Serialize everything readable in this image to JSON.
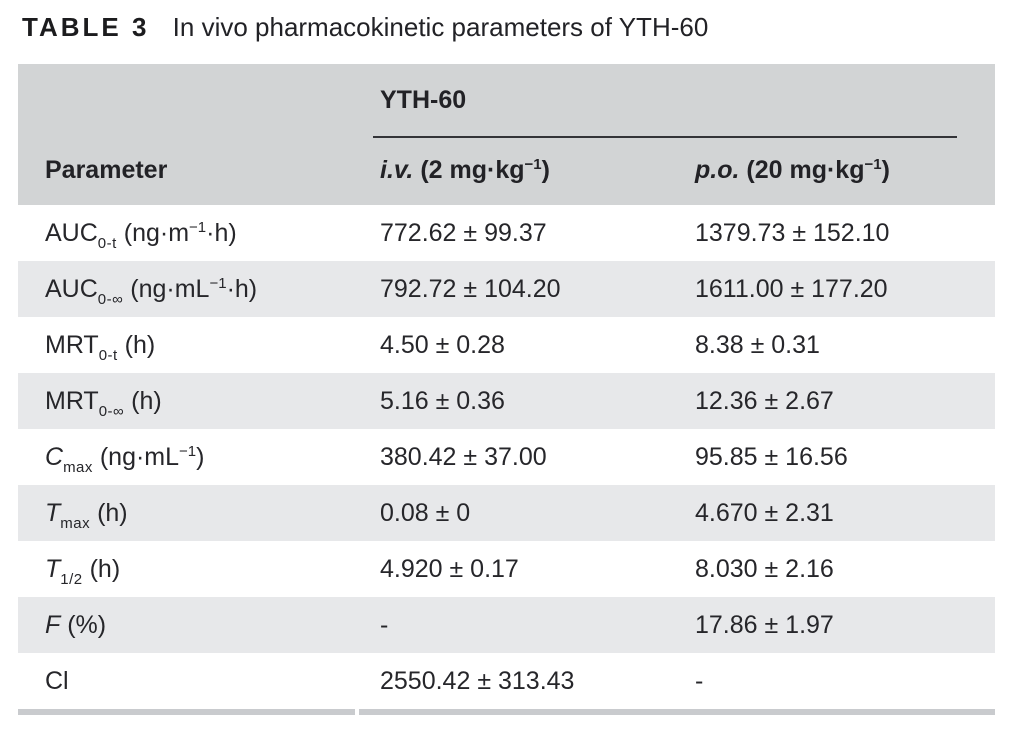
{
  "title": {
    "label": "TABLE 3",
    "text": "In vivo pharmacokinetic parameters of YTH-60"
  },
  "table": {
    "group_header": "YTH-60",
    "header": {
      "parameter": "Parameter",
      "iv": {
        "label": "i.v.",
        "dose_prefix": " (2 mg·kg",
        "exponent": "−1",
        "dose_suffix": ")"
      },
      "po": {
        "label": "p.o.",
        "dose_prefix": " (20 mg·kg",
        "exponent": "−1",
        "dose_suffix": ")"
      }
    },
    "rows": [
      {
        "base": "AUC",
        "base_italic": false,
        "sub": "0-t",
        "unit_prefix": " (ng·m",
        "unit_sup": "−1",
        "unit_suffix": "·h)",
        "iv": "772.62 ± 99.37",
        "po": "1379.73 ± 152.10"
      },
      {
        "base": "AUC",
        "base_italic": false,
        "sub": "0-∞",
        "unit_prefix": " (ng·mL",
        "unit_sup": "−1",
        "unit_suffix": "·h)",
        "iv": "792.72 ± 104.20",
        "po": "1611.00 ± 177.20"
      },
      {
        "base": "MRT",
        "base_italic": false,
        "sub": "0-t",
        "unit_prefix": " (h)",
        "unit_sup": "",
        "unit_suffix": "",
        "iv": "4.50 ± 0.28",
        "po": "8.38 ± 0.31"
      },
      {
        "base": "MRT",
        "base_italic": false,
        "sub": "0-∞",
        "unit_prefix": " (h)",
        "unit_sup": "",
        "unit_suffix": "",
        "iv": "5.16 ± 0.36",
        "po": "12.36 ± 2.67"
      },
      {
        "base": "C",
        "base_italic": true,
        "sub": "max",
        "unit_prefix": " (ng·mL",
        "unit_sup": "−1",
        "unit_suffix": ")",
        "iv": "380.42 ± 37.00",
        "po": "95.85 ± 16.56"
      },
      {
        "base": "T",
        "base_italic": true,
        "sub": "max",
        "unit_prefix": " (h)",
        "unit_sup": "",
        "unit_suffix": "",
        "iv": "0.08 ± 0",
        "po": "4.670 ± 2.31"
      },
      {
        "base": "T",
        "base_italic": true,
        "sub": "1/2",
        "unit_prefix": " (h)",
        "unit_sup": "",
        "unit_suffix": "",
        "iv": "4.920 ± 0.17",
        "po": "8.030 ± 2.16"
      },
      {
        "base": "F",
        "base_italic": true,
        "sub": "",
        "unit_prefix": " (%)",
        "unit_sup": "",
        "unit_suffix": "",
        "iv": "-",
        "po": "17.86 ± 1.97"
      },
      {
        "base": "Cl",
        "base_italic": false,
        "sub": "",
        "unit_prefix": "",
        "unit_sup": "",
        "unit_suffix": "",
        "iv": "2550.42 ± 313.43",
        "po": "-"
      }
    ]
  },
  "colors": {
    "header_band": "#d2d4d5",
    "row_alt": "#e7e8ea",
    "rule": "#333438",
    "bottom_bar": "#c9cbce",
    "text": "#26262a"
  }
}
